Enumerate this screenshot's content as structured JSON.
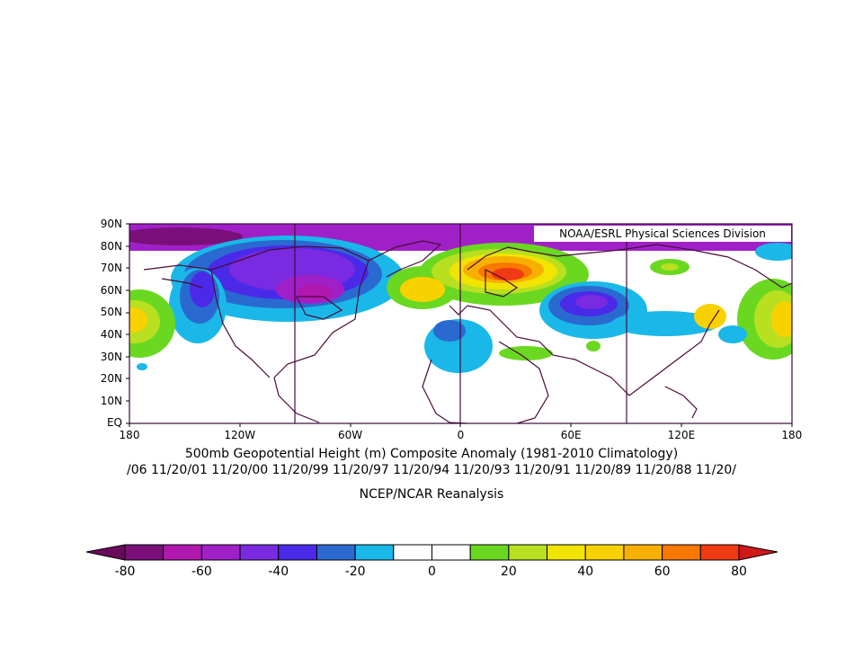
{
  "map": {
    "credit": "NOAA/ESRL Physical Sciences Division",
    "lat_labels": [
      "90N",
      "80N",
      "70N",
      "60N",
      "50N",
      "40N",
      "30N",
      "20N",
      "10N",
      "EQ"
    ],
    "lon_labels": [
      "180",
      "120W",
      "60W",
      "0",
      "60E",
      "120E",
      "180"
    ],
    "title": "500mb Geopotential Height (m) Composite Anomaly (1981-2010 Climatology)",
    "dates": "/06 11/20/01 11/20/00 11/20/99 11/20/97 11/20/94 11/20/93 11/20/91 11/20/89 11/20/88 11/20/",
    "source": "NCEP/NCAR Reanalysis"
  },
  "colorbar": {
    "ticks": [
      "-80",
      "-60",
      "-40",
      "-20",
      "0",
      "20",
      "40",
      "60",
      "80"
    ],
    "colors": [
      "#7a0f7a",
      "#b018b0",
      "#a020c8",
      "#7a2ae0",
      "#4a2ae8",
      "#2a6ad0",
      "#1ab8e8",
      "#ffffff",
      "#ffffff",
      "#6ad820",
      "#b8e020",
      "#f0e400",
      "#f8d200",
      "#f8b000",
      "#f87800",
      "#f03a14"
    ],
    "low_color": "#6a0a5a",
    "high_color": "#d01818"
  }
}
